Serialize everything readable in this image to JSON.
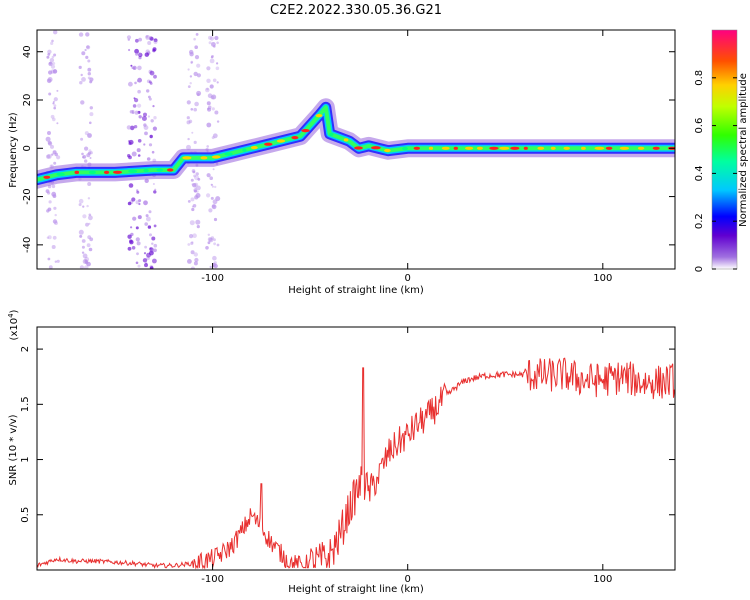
{
  "figure": {
    "title": "C2E2.2022.330.05.36.G21"
  },
  "chart_data": [
    {
      "type": "heatmap",
      "name": "spectrogram",
      "xlabel": "Height of straight line (km)",
      "ylabel": "Frequency (Hz)",
      "xlim": [
        -190,
        137
      ],
      "ylim": [
        -50,
        49
      ],
      "xticks": [
        -100,
        0,
        100
      ],
      "yticks": [
        -40,
        -20,
        0,
        20,
        40
      ],
      "colorbar": {
        "label": "Normalized spectral amplitude",
        "range": [
          0,
          1
        ],
        "ticks": [
          0.0,
          0.2,
          0.4,
          0.6,
          0.8
        ]
      },
      "ridge": [
        {
          "x": -190,
          "y": -13
        },
        {
          "x": -180,
          "y": -11
        },
        {
          "x": -170,
          "y": -10
        },
        {
          "x": -150,
          "y": -10
        },
        {
          "x": -130,
          "y": -9
        },
        {
          "x": -120,
          "y": -9
        },
        {
          "x": -115,
          "y": -4
        },
        {
          "x": -100,
          "y": -4
        },
        {
          "x": -90,
          "y": -2
        },
        {
          "x": -80,
          "y": 0
        },
        {
          "x": -70,
          "y": 2
        },
        {
          "x": -55,
          "y": 5
        },
        {
          "x": -45,
          "y": 14
        },
        {
          "x": -42,
          "y": 17
        },
        {
          "x": -40,
          "y": 6
        },
        {
          "x": -30,
          "y": 3
        },
        {
          "x": -25,
          "y": 0
        },
        {
          "x": -20,
          "y": 1
        },
        {
          "x": -10,
          "y": -1
        },
        {
          "x": 0,
          "y": 0
        },
        {
          "x": 137,
          "y": 0
        }
      ]
    },
    {
      "type": "line",
      "name": "snr",
      "xlabel": "Height of straight line (km)",
      "ylabel": "SNR (10 * v/v)",
      "y_multiplier": "(x10",
      "y_multiplier_exp": "4",
      "y_multiplier_close": ")",
      "xlim": [
        -190,
        137
      ],
      "ylim": [
        0,
        2.2
      ],
      "xticks": [
        -100,
        0,
        100
      ],
      "yticks": [
        0.5,
        1.0,
        1.5,
        2.0
      ],
      "color": "#e8302f",
      "series": [
        {
          "x": [
            -190,
            -180,
            -170,
            -160,
            -150,
            -140,
            -130,
            -120,
            -110,
            -100,
            -95,
            -90,
            -85,
            -80,
            -75,
            -70,
            -65,
            -60,
            -55,
            -50,
            -45,
            -40,
            -35,
            -30,
            -25,
            -23,
            -20,
            -15,
            -10,
            -5,
            0,
            5,
            10,
            15,
            20,
            25,
            30,
            40,
            50,
            60,
            70,
            80,
            90,
            100,
            110,
            120,
            130,
            137
          ],
          "y": [
            0.04,
            0.1,
            0.08,
            0.08,
            0.07,
            0.06,
            0.04,
            0.04,
            0.06,
            0.1,
            0.15,
            0.22,
            0.35,
            0.5,
            0.38,
            0.25,
            0.15,
            0.06,
            0.04,
            0.06,
            0.08,
            0.12,
            0.3,
            0.55,
            0.75,
            0.8,
            0.7,
            0.85,
            1.05,
            1.15,
            1.22,
            1.32,
            1.38,
            1.48,
            1.58,
            1.66,
            1.72,
            1.76,
            1.77,
            1.77,
            1.76,
            1.77,
            1.72,
            1.72,
            1.75,
            1.7,
            1.7,
            1.72
          ]
        }
      ],
      "spikes": [
        {
          "x": -75,
          "y": 0.78
        },
        {
          "x": -23,
          "y": 1.83
        }
      ]
    }
  ]
}
